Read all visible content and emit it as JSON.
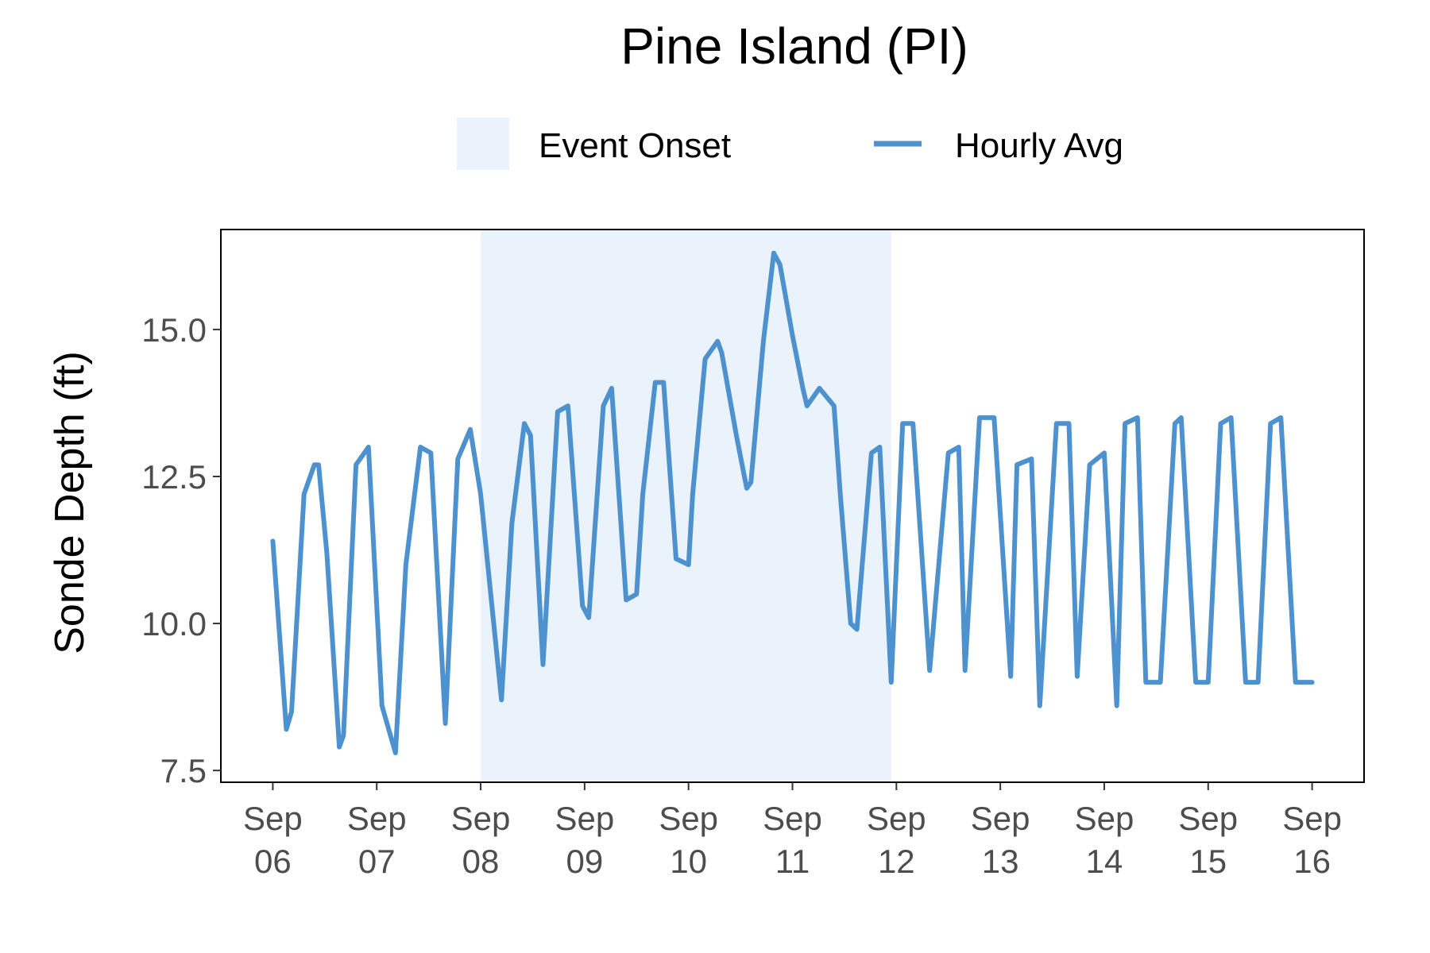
{
  "chart_data": {
    "type": "line",
    "title": "Pine Island (PI)",
    "xlabel": "",
    "ylabel": "Sonde Depth (ft)",
    "ylim": [
      7.3,
      16.7
    ],
    "yticks": [
      7.5,
      10.0,
      12.5,
      15.0
    ],
    "ytick_labels": [
      "7.5",
      "10.0",
      "12.5",
      "15.0"
    ],
    "xlim": [
      -0.5,
      10.5
    ],
    "xticks": [
      0,
      1,
      2,
      3,
      4,
      5,
      6,
      7,
      8,
      9,
      10
    ],
    "xtick_labels": [
      [
        "Sep",
        "06"
      ],
      [
        "Sep",
        "07"
      ],
      [
        "Sep",
        "08"
      ],
      [
        "Sep",
        "09"
      ],
      [
        "Sep",
        "10"
      ],
      [
        "Sep",
        "11"
      ],
      [
        "Sep",
        "12"
      ],
      [
        "Sep",
        "13"
      ],
      [
        "Sep",
        "14"
      ],
      [
        "Sep",
        "15"
      ],
      [
        "Sep",
        "16"
      ]
    ],
    "grid": false,
    "legend_position": "top",
    "legend": [
      {
        "label": "Event Onset",
        "kind": "fill",
        "color": "#eaf2fb"
      },
      {
        "label": "Hourly Avg",
        "kind": "line",
        "color": "#4d92ce"
      }
    ],
    "shaded_region": {
      "name": "Event Onset",
      "x_start": 2.0,
      "x_end": 5.95,
      "color": "#eaf2fb"
    },
    "series": [
      {
        "name": "Hourly Avg",
        "color": "#4d92ce",
        "x": [
          0.0,
          0.13,
          0.18,
          0.3,
          0.4,
          0.44,
          0.52,
          0.64,
          0.68,
          0.8,
          0.92,
          1.05,
          1.18,
          1.28,
          1.42,
          1.52,
          1.66,
          1.78,
          1.9,
          2.0,
          2.2,
          2.3,
          2.42,
          2.48,
          2.6,
          2.74,
          2.84,
          2.98,
          3.04,
          3.18,
          3.26,
          3.4,
          3.5,
          3.56,
          3.68,
          3.76,
          3.88,
          4.0,
          4.04,
          4.16,
          4.28,
          4.32,
          4.46,
          4.56,
          4.6,
          4.72,
          4.82,
          4.88,
          5.0,
          5.1,
          5.14,
          5.26,
          5.4,
          5.46,
          5.56,
          5.62,
          5.76,
          5.84,
          5.95,
          6.06,
          6.16,
          6.32,
          6.5,
          6.6,
          6.66,
          6.8,
          6.94,
          7.1,
          7.16,
          7.3,
          7.38,
          7.54,
          7.66,
          7.74,
          7.86,
          8.0,
          8.12,
          8.2,
          8.32,
          8.4,
          8.54,
          8.68,
          8.74,
          8.88,
          9.0,
          9.12,
          9.22,
          9.36,
          9.48,
          9.6,
          9.7,
          9.84,
          10.0
        ],
        "y": [
          11.4,
          8.2,
          8.5,
          12.2,
          12.7,
          12.7,
          11.2,
          7.9,
          8.1,
          12.7,
          13.0,
          8.6,
          7.8,
          11.0,
          13.0,
          12.9,
          8.3,
          12.8,
          13.3,
          12.2,
          8.7,
          11.7,
          13.4,
          13.2,
          9.3,
          13.6,
          13.7,
          10.3,
          10.1,
          13.7,
          14.0,
          10.4,
          10.5,
          12.2,
          14.1,
          14.1,
          11.1,
          11.0,
          12.2,
          14.5,
          14.8,
          14.6,
          13.2,
          12.3,
          12.4,
          14.8,
          16.3,
          16.1,
          14.9,
          14.0,
          13.7,
          14.0,
          13.7,
          12.2,
          10.0,
          9.9,
          12.9,
          13.0,
          9.0,
          13.4,
          13.4,
          9.2,
          12.9,
          13.0,
          9.2,
          13.5,
          13.5,
          9.1,
          12.7,
          12.8,
          8.6,
          13.4,
          13.4,
          9.1,
          12.7,
          12.9,
          8.6,
          13.4,
          13.5,
          9.0,
          9.0,
          13.4,
          13.5,
          9.0,
          9.0,
          13.4,
          13.5,
          9.0,
          9.0,
          13.4,
          13.5,
          9.0,
          9.0
        ]
      }
    ]
  }
}
